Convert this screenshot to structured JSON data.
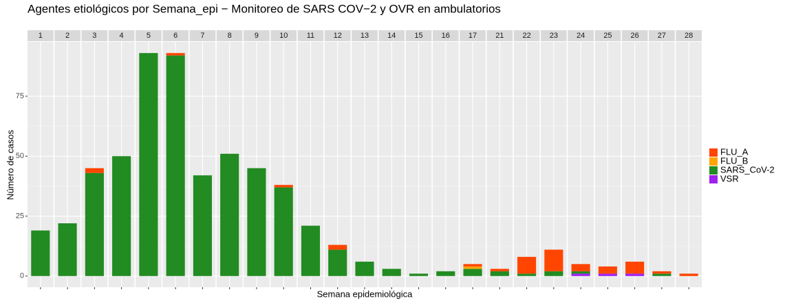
{
  "chart_data": {
    "type": "bar",
    "title": "Agentes etiológicos por Semana_epi − Monitoreo de SARS COV−2 y OVR en ambulatorios",
    "x_label": "Semana epidemiológica",
    "y_label": "Número de casos",
    "categories": [
      "1",
      "2",
      "3",
      "4",
      "5",
      "6",
      "7",
      "8",
      "9",
      "10",
      "11",
      "12",
      "13",
      "14",
      "15",
      "16",
      "17",
      "21",
      "22",
      "23",
      "24",
      "25",
      "26",
      "27",
      "28"
    ],
    "series": [
      {
        "name": "FLU_A",
        "color": "#ff4500",
        "values": [
          0,
          0,
          2,
          0,
          0,
          1,
          0,
          0,
          0,
          1,
          0,
          2,
          0,
          0,
          0,
          0,
          1,
          1,
          7,
          9,
          3,
          3,
          5,
          1,
          1
        ]
      },
      {
        "name": "FLU_B",
        "color": "#ffa500",
        "values": [
          0,
          0,
          0,
          0,
          0,
          0,
          0,
          0,
          0,
          0,
          0,
          0,
          0,
          0,
          0,
          0,
          1,
          0,
          0,
          0,
          0,
          0,
          0,
          0,
          0
        ]
      },
      {
        "name": "SARS_CoV-2",
        "color": "#228b22",
        "values": [
          19,
          22,
          43,
          50,
          93,
          92,
          42,
          51,
          45,
          37,
          21,
          11,
          6,
          3,
          1,
          2,
          3,
          2,
          1,
          2,
          1,
          0,
          0,
          1,
          0
        ]
      },
      {
        "name": "VSR",
        "color": "#a020f0",
        "values": [
          0,
          0,
          0,
          0,
          0,
          0,
          0,
          0,
          0,
          0,
          0,
          0,
          0,
          0,
          0,
          0,
          0,
          0,
          0,
          0,
          1,
          1,
          1,
          0,
          0
        ]
      }
    ],
    "stacked": true,
    "ylim": [
      -4.65,
      97.65
    ],
    "yticks": [
      0,
      25,
      50,
      75
    ],
    "grid": true,
    "legend": "right"
  }
}
